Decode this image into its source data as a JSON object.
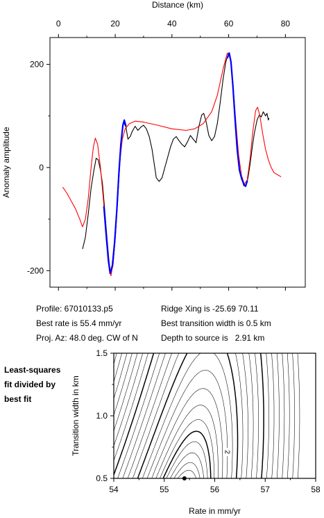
{
  "chart_data": [
    {
      "type": "line",
      "xlabel": "Distance (km)",
      "ylabel": "Anomaly amplitude",
      "xlim": [
        -3,
        87
      ],
      "ylim": [
        -232,
        252
      ],
      "xticks": [
        0,
        20,
        40,
        60,
        80
      ],
      "yticks": [
        -200,
        0,
        200
      ],
      "minor_yticks": [
        -100,
        100
      ],
      "series": [
        {
          "color": "#000000",
          "points": [
            [
              8.5,
              -158
            ],
            [
              9.5,
              -135
            ],
            [
              10.5,
              -90
            ],
            [
              11.5,
              -40
            ],
            [
              12.5,
              -5
            ],
            [
              13.3,
              18
            ],
            [
              14,
              15
            ],
            [
              14.8,
              -5
            ],
            [
              15.5,
              -30
            ],
            [
              16.2,
              -75
            ],
            [
              17,
              -130
            ],
            [
              17.8,
              -180
            ],
            [
              18.4,
              -207
            ],
            [
              19.2,
              -190
            ],
            [
              20,
              -140
            ],
            [
              20.8,
              -70
            ],
            [
              21.5,
              0
            ],
            [
              22.2,
              55
            ],
            [
              23,
              88
            ],
            [
              23.8,
              78
            ],
            [
              24.5,
              55
            ],
            [
              25.3,
              60
            ],
            [
              26,
              70
            ],
            [
              27,
              80
            ],
            [
              28,
              72
            ],
            [
              29,
              78
            ],
            [
              30,
              82
            ],
            [
              31,
              75
            ],
            [
              32,
              60
            ],
            [
              33,
              35
            ],
            [
              33.8,
              5
            ],
            [
              34.5,
              -20
            ],
            [
              35.5,
              -27
            ],
            [
              36.5,
              -20
            ],
            [
              37.5,
              0
            ],
            [
              38.5,
              20
            ],
            [
              39.5,
              40
            ],
            [
              40.5,
              55
            ],
            [
              41.5,
              60
            ],
            [
              42.5,
              52
            ],
            [
              43.5,
              45
            ],
            [
              44.5,
              40
            ],
            [
              45.5,
              50
            ],
            [
              46.5,
              62
            ],
            [
              47.5,
              55
            ],
            [
              48.5,
              48
            ],
            [
              49.5,
              80
            ],
            [
              50.5,
              102
            ],
            [
              51.2,
              105
            ],
            [
              52,
              90
            ],
            [
              53,
              62
            ],
            [
              54,
              52
            ],
            [
              55,
              60
            ],
            [
              56,
              85
            ],
            [
              57,
              125
            ],
            [
              58,
              170
            ],
            [
              59,
              205
            ],
            [
              60,
              222
            ],
            [
              60.8,
              205
            ],
            [
              61.5,
              160
            ],
            [
              62.2,
              95
            ],
            [
              63,
              35
            ],
            [
              63.8,
              -5
            ],
            [
              64.5,
              -20
            ],
            [
              65.3,
              -35
            ],
            [
              66,
              -37
            ],
            [
              66.8,
              -20
            ],
            [
              67.5,
              5
            ],
            [
              68.3,
              38
            ],
            [
              69,
              65
            ],
            [
              70,
              92
            ],
            [
              70.8,
              102
            ],
            [
              71.5,
              98
            ],
            [
              72.2,
              108
            ],
            [
              73,
              100
            ],
            [
              73.5,
              105
            ],
            [
              74,
              92
            ],
            [
              74.2,
              96
            ]
          ]
        },
        {
          "color": "#ff0000",
          "points": [
            [
              1.5,
              -38
            ],
            [
              3,
              -50
            ],
            [
              4.5,
              -65
            ],
            [
              6,
              -80
            ],
            [
              7.5,
              -100
            ],
            [
              8.5,
              -115
            ],
            [
              9.5,
              -100
            ],
            [
              10.5,
              -60
            ],
            [
              11.5,
              0
            ],
            [
              12.3,
              40
            ],
            [
              13,
              57
            ],
            [
              13.8,
              45
            ],
            [
              14.8,
              0
            ],
            [
              15.8,
              -60
            ],
            [
              16.8,
              -130
            ],
            [
              17.8,
              -190
            ],
            [
              18.5,
              -210
            ],
            [
              19.3,
              -185
            ],
            [
              20.2,
              -120
            ],
            [
              21,
              -50
            ],
            [
              21.8,
              20
            ],
            [
              22.5,
              55
            ],
            [
              23.5,
              75
            ],
            [
              25,
              85
            ],
            [
              27,
              90
            ],
            [
              30,
              88
            ],
            [
              35,
              82
            ],
            [
              40,
              75
            ],
            [
              45,
              72
            ],
            [
              48,
              75
            ],
            [
              51,
              85
            ],
            [
              54,
              108
            ],
            [
              56,
              140
            ],
            [
              58,
              190
            ],
            [
              59.5,
              222
            ],
            [
              60.5,
              215
            ],
            [
              61.5,
              165
            ],
            [
              62.5,
              90
            ],
            [
              63.5,
              25
            ],
            [
              64.5,
              -15
            ],
            [
              65.5,
              -32
            ],
            [
              66.5,
              -25
            ],
            [
              67.5,
              15
            ],
            [
              68.5,
              70
            ],
            [
              69.5,
              110
            ],
            [
              70.2,
              117
            ],
            [
              71,
              100
            ],
            [
              72,
              65
            ],
            [
              73,
              35
            ],
            [
              74,
              15
            ],
            [
              75,
              0
            ],
            [
              76,
              -10
            ],
            [
              77.5,
              -15
            ],
            [
              78.5,
              -18
            ]
          ]
        },
        {
          "color": "#0000ff",
          "points": [
            [
              16,
              -75
            ],
            [
              16.8,
              -130
            ],
            [
              17.6,
              -180
            ],
            [
              18.2,
              -205
            ],
            [
              19,
              -190
            ],
            [
              19.8,
              -145
            ],
            [
              20.6,
              -80
            ],
            [
              21.3,
              -10
            ],
            [
              22,
              45
            ],
            [
              22.7,
              82
            ],
            [
              23.2,
              92
            ],
            [
              23.8,
              80
            ]
          ]
        },
        {
          "color": "#0000ff",
          "points": [
            [
              59.5,
              212
            ],
            [
              60.2,
              222
            ],
            [
              60.8,
              205
            ],
            [
              61.5,
              158
            ],
            [
              62.3,
              90
            ],
            [
              63,
              35
            ],
            [
              63.8,
              -5
            ],
            [
              64.6,
              -22
            ],
            [
              65.4,
              -33
            ],
            [
              66,
              -36
            ],
            [
              66.6,
              -25
            ]
          ]
        }
      ]
    },
    {
      "type": "contour",
      "xlabel": "Rate in mm/yr",
      "ylabel": "Transition width in km",
      "xlim": [
        54,
        58
      ],
      "ylim": [
        0.5,
        1.5
      ],
      "xticks": [
        54,
        55,
        56,
        57,
        58
      ],
      "yticks": [
        0.5,
        1.0,
        1.5
      ],
      "annotation": "2",
      "annotation_at": [
        56.25,
        0.71
      ],
      "best_fit_point": [
        55.4,
        0.5
      ],
      "minimum_at": [
        55.45,
        0.5
      ],
      "contour_levels": [
        1.15,
        1.3,
        1.5,
        1.75,
        2,
        2.3,
        2.7,
        3.2,
        3.8,
        4.5,
        5.3,
        6.2,
        7.2,
        8.3,
        9.5,
        10.8,
        12.2,
        13.7,
        15.3,
        17,
        18.8,
        20.7,
        22.7
      ],
      "bold_levels": [
        2,
        5.3,
        10.8
      ]
    }
  ],
  "info": {
    "profile": "Profile: 67010133.p5",
    "ridge_xing": "Ridge Xing is -25.69 70.11",
    "best_rate": "Best rate is 55.4 mm/yr",
    "best_width": "Best transition width is 0.5 km",
    "proj_az": "Proj. Az: 48.0 deg. CW of N",
    "depth": "Depth to source is   2.91 km"
  },
  "side_label": [
    "Least-squares",
    "fit divided by",
    "best fit"
  ]
}
